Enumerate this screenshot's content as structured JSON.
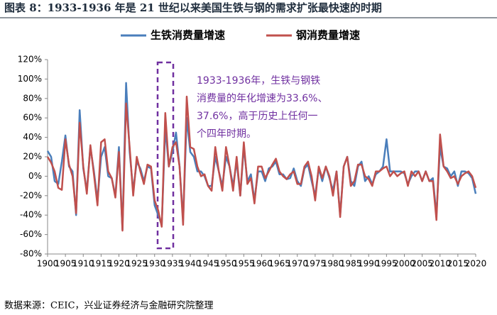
{
  "chart_data": {
    "type": "line",
    "title": "图表 8：1933-1936 年是 21 世纪以来美国生铁与钢的需求扩张最快速的时期",
    "source": "数据来源：CEIC，兴业证券经济与金融研究院整理",
    "annotation": [
      "1933-1936年，生铁与钢铁",
      "消费量的年化增速为33.6%、",
      "37.6%，高于历史上任何一",
      "个四年时期。"
    ],
    "legend": "top",
    "x": [
      1900,
      1901,
      1902,
      1903,
      1904,
      1905,
      1906,
      1907,
      1908,
      1909,
      1910,
      1911,
      1912,
      1913,
      1914,
      1915,
      1916,
      1917,
      1918,
      1919,
      1920,
      1921,
      1922,
      1923,
      1924,
      1925,
      1926,
      1927,
      1928,
      1929,
      1930,
      1931,
      1932,
      1933,
      1934,
      1935,
      1936,
      1937,
      1938,
      1939,
      1940,
      1941,
      1942,
      1943,
      1944,
      1945,
      1946,
      1947,
      1948,
      1949,
      1950,
      1951,
      1952,
      1953,
      1954,
      1955,
      1956,
      1957,
      1958,
      1959,
      1960,
      1961,
      1962,
      1963,
      1964,
      1965,
      1966,
      1967,
      1968,
      1969,
      1970,
      1971,
      1972,
      1973,
      1974,
      1975,
      1976,
      1977,
      1978,
      1979,
      1980,
      1981,
      1982,
      1983,
      1984,
      1985,
      1986,
      1987,
      1988,
      1989,
      1990,
      1991,
      1992,
      1993,
      1994,
      1995,
      1996,
      1997,
      1998,
      1999,
      2000,
      2001,
      2002,
      2003,
      2004,
      2005,
      2006,
      2007,
      2008,
      2009,
      2010,
      2011,
      2012,
      2013,
      2014,
      2015,
      2016,
      2017,
      2018,
      2019,
      2020
    ],
    "series": [
      {
        "name": "生铁消费量增速",
        "color": "#4a7ebb",
        "values": [
          26,
          20,
          -5,
          -8,
          15,
          42,
          10,
          5,
          -40,
          68,
          8,
          -15,
          30,
          5,
          -25,
          20,
          30,
          0,
          -2,
          -20,
          30,
          -55,
          96,
          25,
          -15,
          15,
          8,
          -5,
          10,
          8,
          -30,
          -40,
          -50,
          50,
          10,
          25,
          45,
          10,
          -45,
          60,
          25,
          20,
          5,
          5,
          0,
          -10,
          -10,
          20,
          5,
          -10,
          20,
          10,
          -10,
          15,
          -20,
          30,
          -5,
          2,
          -25,
          5,
          5,
          -5,
          8,
          10,
          15,
          2,
          2,
          -3,
          -2,
          8,
          -5,
          -10,
          8,
          12,
          -5,
          -20,
          8,
          -5,
          10,
          -2,
          -15,
          5,
          -40,
          10,
          20,
          -5,
          -10,
          10,
          15,
          -5,
          0,
          -8,
          2,
          5,
          10,
          38,
          5,
          5,
          5,
          5,
          3,
          -8,
          0,
          5,
          5,
          -5,
          5,
          -5,
          -2,
          -40,
          30,
          10,
          8,
          0,
          5,
          -10,
          5,
          5,
          3,
          -2,
          -18
        ]
      },
      {
        "name": "钢消费量增速",
        "color": "#c0504d",
        "values": [
          20,
          14,
          5,
          -12,
          -14,
          38,
          12,
          0,
          -38,
          55,
          10,
          -18,
          32,
          2,
          -30,
          35,
          38,
          5,
          -2,
          -22,
          25,
          -56,
          75,
          30,
          -20,
          20,
          5,
          -8,
          12,
          10,
          -25,
          -35,
          -52,
          65,
          10,
          30,
          35,
          10,
          -50,
          82,
          30,
          28,
          10,
          0,
          2,
          -10,
          -15,
          30,
          5,
          -15,
          30,
          10,
          -15,
          20,
          -20,
          35,
          -8,
          -2,
          -28,
          10,
          10,
          -2,
          5,
          12,
          18,
          5,
          0,
          -3,
          2,
          5,
          -8,
          -8,
          10,
          15,
          0,
          -25,
          10,
          -2,
          10,
          0,
          -20,
          5,
          -42,
          10,
          20,
          -10,
          -5,
          12,
          12,
          0,
          -3,
          -10,
          5,
          5,
          8,
          10,
          0,
          5,
          0,
          3,
          5,
          -10,
          5,
          0,
          5,
          -5,
          5,
          -5,
          -5,
          -45,
          43,
          10,
          5,
          -2,
          0,
          -8,
          0,
          3,
          5,
          0,
          -12
        ]
      }
    ],
    "xlim": [
      1900,
      2020
    ],
    "xticks": [
      1900,
      1905,
      1910,
      1915,
      1920,
      1925,
      1930,
      1935,
      1940,
      1945,
      1950,
      1955,
      1960,
      1965,
      1970,
      1975,
      1980,
      1985,
      1990,
      1995,
      2000,
      2005,
      2010,
      2015,
      2020
    ],
    "ylim": [
      -80,
      120
    ],
    "yticks": [
      {
        "value": -80,
        "label": "-80%"
      },
      {
        "value": -60,
        "label": "-60%"
      },
      {
        "value": -40,
        "label": "-40%"
      },
      {
        "value": -20,
        "label": "-20%"
      },
      {
        "value": 0,
        "label": "0%"
      },
      {
        "value": 20,
        "label": "20%"
      },
      {
        "value": 40,
        "label": "40%"
      },
      {
        "value": 60,
        "label": "60%"
      },
      {
        "value": 80,
        "label": "80%"
      },
      {
        "value": 100,
        "label": "100%"
      },
      {
        "value": 120,
        "label": "120%"
      }
    ]
  }
}
